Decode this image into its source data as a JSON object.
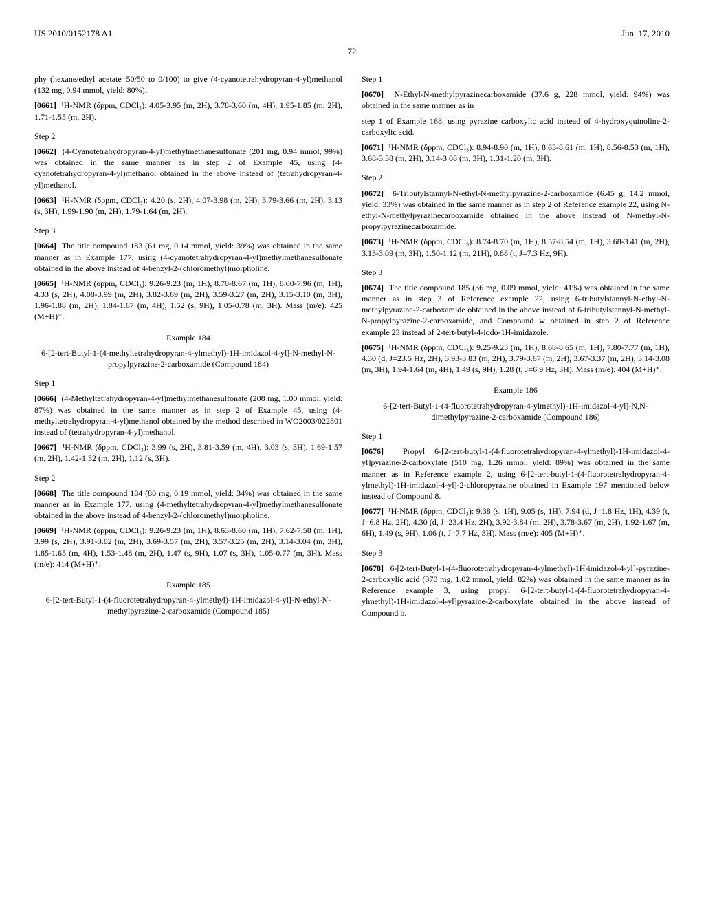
{
  "header": {
    "pub_number": "US 2010/0152178 A1",
    "pub_date": "Jun. 17, 2010",
    "page_number": "72"
  },
  "col1": {
    "intro": "phy (hexane/ethyl acetate=50/50 to 0/100) to give (4-cyanotetrahydropyran-4-yl)methanol (132 mg, 0.94 mmol, yield: 80%).",
    "p0661_label": "[0661]",
    "p0661": "¹H-NMR (δppm, CDCl₃): 4.05-3.95 (m, 2H), 3.78-3.60 (m, 4H), 1.95-1.85 (m, 2H), 1.71-1.55 (m, 2H).",
    "step2_h": "Step 2",
    "p0662_label": "[0662]",
    "p0662": "(4-Cyanotetrahydropyran-4-yl)methylmethanesulfonate (201 mg, 0.94 mmol, 99%) was obtained in the same manner as in step 2 of Example 45, using (4-cyanotetrahydropyran-4-yl)methanol obtained in the above instead of (tetrahydropyran-4-yl)methanol.",
    "p0663_label": "[0663]",
    "p0663": "¹H-NMR (δppm, CDCl₃): 4.20 (s, 2H), 4.07-3.98 (m, 2H), 3.79-3.66 (m, 2H), 3.13 (s, 3H), 1.99-1.90 (m, 2H), 1.79-1.64 (m, 2H).",
    "step3_h": "Step 3",
    "p0664_label": "[0664]",
    "p0664": "The title compound 183 (61 mg, 0.14 mmol, yield: 39%) was obtained in the same manner as in Example 177, using (4-cyanotetrahydropyran-4-yl)methylmethanesulfonate obtained in the above instead of 4-benzyl-2-(chloromethyl)morpholine.",
    "p0665_label": "[0665]",
    "p0665": "¹H-NMR (δppm, CDCl₃): 9.26-9.23 (m, 1H), 8.70-8.67 (m, 1H), 8.00-7.96 (m, 1H), 4.33 (s, 2H), 4.08-3.99 (m, 2H), 3.82-3.69 (m, 2H), 3.59-3.27 (m, 2H), 3.15-3.10 (m, 3H), 1.96-1.88 (m, 2H), 1.84-1.67 (m, 4H), 1.52 (s, 9H), 1.05-0.78 (m, 3H). Mass (m/e): 425 (M+H)⁺.",
    "ex184_h": "Example 184",
    "ex184_title": "6-[2-tert-Butyl-1-(4-methyltetrahydropyran-4-ylmethyl)-1H-imidazol-4-yl]-N-methyl-N-propylpyrazine-2-carboxamide (Compound 184)",
    "ex184_step1_h": "Step 1",
    "p0666_label": "[0666]",
    "p0666": "(4-Methyltetrahydropyran-4-yl)methylmethanesulfonate (208 mg, 1.00 mmol, yield: 87%) was obtained in the same manner as in step 2 of Example 45, using (4-methyltetrahydropyran-4-yl)methanol obtained by the method described in WO2003/022801 instead of (tetrahydropyran-4-yl)methanol.",
    "p0667_label": "[0667]",
    "p0667": "¹H-NMR (δppm, CDCl₃): 3.99 (s, 2H), 3.81-3.59 (m, 4H), 3.03 (s, 3H), 1.69-1.57 (m, 2H), 1.42-1.32 (m, 2H), 1.12 (s, 3H).",
    "ex184_step2_h": "Step 2",
    "p0668_label": "[0668]",
    "p0668": "The title compound 184 (80 mg, 0.19 mmol, yield: 34%) was obtained in the same manner as in Example 177, using (4-methyltetrahydropyran-4-yl)methylmethanesulfonate obtained in the above instead of 4-benzyl-2-(chloromethyl)morpholine.",
    "p0669_label": "[0669]",
    "p0669": "¹H-NMR (δppm, CDCl₃): 9.26-9.23 (m, 1H), 8.63-8.60 (m, 1H), 7.62-7.58 (m, 1H), 3.99 (s, 2H), 3.91-3.82 (m, 2H), 3.69-3.57 (m, 2H), 3.57-3.25 (m, 2H), 3.14-3.04 (m, 3H), 1.85-1.65 (m, 4H), 1.53-1.48 (m, 2H), 1.47 (s, 9H), 1.07 (s, 3H), 1.05-0.77 (m, 3H). Mass (m/e): 414 (M+H)⁺.",
    "ex185_h": "Example 185",
    "ex185_title": "6-[2-tert-Butyl-1-(4-fluorotetrahydropyran-4-ylmethyl)-1H-imidazol-4-yl]-N-ethyl-N-methylpyrazine-2-carboxamide (Compound 185)",
    "ex185_step1_h": "Step 1",
    "p0670_label": "[0670]",
    "p0670": "N-Ethyl-N-methylpyrazinecarboxamide (37.6 g, 228 mmol, yield: 94%) was obtained in the same manner as in"
  },
  "col2": {
    "intro2": "step 1 of Example 168, using pyrazine carboxylic acid instead of 4-hydroxyquinoline-2-carboxylic acid.",
    "p0671_label": "[0671]",
    "p0671": "¹H-NMR (δppm, CDCl₃): 8.94-8.90 (m, 1H), 8.63-8.61 (m, 1H), 8.56-8.53 (m, 1H), 3.68-3.38 (m, 2H), 3.14-3.08 (m, 3H), 1.31-1.20 (m, 3H).",
    "step2_h": "Step 2",
    "p0672_label": "[0672]",
    "p0672": "6-Tributylstannyl-N-ethyl-N-methylpyrazine-2-carboxamide (6.45 g, 14.2 mmol, yield: 33%) was obtained in the same manner as in step 2 of Reference example 22, using N-ethyl-N-methylpyrazinecarboxamide obtained in the above instead of N-methyl-N-propylpyrazinecarboxamide.",
    "p0673_label": "[0673]",
    "p0673": "¹H-NMR (δppm, CDCl₃): 8.74-8.70 (m, 1H), 8.57-8.54 (m, 1H), 3.68-3.41 (m, 2H), 3.13-3.09 (m, 3H), 1.50-1.12 (m, 21H), 0.88 (t, J=7.3 Hz, 9H).",
    "step3_h": "Step 3",
    "p0674_label": "[0674]",
    "p0674": "The title compound 185 (36 mg, 0.09 mmol, yield: 41%) was obtained in the same manner as in step 3 of Reference example 22, using 6-tributylstannyl-N-ethyl-N-methylpyrazine-2-carboxamide obtained in the above instead of 6-tributylstannyl-N-methyl-N-propylpyrazine-2-carboxamide, and Compound w obtained in step 2 of Reference example 23 instead of 2-tert-butyl-4-iodo-1H-imidazole.",
    "p0675_label": "[0675]",
    "p0675": "¹H-NMR (δppm, CDCl₃): 9.25-9.23 (m, 1H), 8.68-8.65 (m, 1H), 7.80-7.77 (m, 1H), 4.30 (d, J=23.5 Hz, 2H), 3.93-3.83 (m, 2H), 3.79-3.67 (m, 2H), 3.67-3.37 (m, 2H), 3.14-3.08 (m, 3H), 1.94-1.64 (m, 4H), 1.49 (s, 9H), 1.28 (t, J=6.9 Hz, 3H). Mass (m/e): 404 (M+H)⁺.",
    "ex186_h": "Example 186",
    "ex186_title": "6-[2-tert-Butyl-1-(4-fluorotetrahydropyran-4-ylmethyl)-1H-imidazol-4-yl]-N,N-dimethylpyrazine-2-carboxamide (Compound 186)",
    "ex186_step1_h": "Step 1",
    "p0676_label": "[0676]",
    "p0676": "Propyl 6-[2-tert-butyl-1-(4-fluorotetrahydropyran-4-ylmethyl)-1H-imidazol-4-yl]pyrazine-2-carboxylate (510 mg, 1.26 mmol, yield: 89%) was obtained in the same manner as in Reference example 2, using 6-[2-tert-butyl-1-(4-fluorotetrahydropyran-4-ylmethyl)-1H-imidazol-4-yl]-2-chloropyrazine obtained in Example 197 mentioned below instead of Compound 8.",
    "p0677_label": "[0677]",
    "p0677": "¹H-NMR (δppm, CDCl₃): 9.38 (s, 1H), 9.05 (s, 1H), 7.94 (d, J=1.8 Hz, 1H), 4.39 (t, J=6.8 Hz, 2H), 4.30 (d, J=23.4 Hz, 2H), 3.92-3.84 (m, 2H), 3.78-3.67 (m, 2H), 1.92-1.67 (m, 6H), 1.49 (s, 9H), 1.06 (t, J=7.7 Hz, 3H). Mass (m/e): 405 (M+H)⁺.",
    "ex186_step3_h": "Step 3",
    "p0678_label": "[0678]",
    "p0678": "6-[2-tert-Butyl-1-(4-fluorotetrahydropyran-4-ylmethyl)-1H-imidazol-4-yl]-pyrazine-2-carboxylic acid (370 mg, 1.02 mmol, yield: 82%) was obtained in the same manner as in Reference example 3, using propyl 6-[2-tert-butyl-1-(4-fluorotetrahydropyran-4-ylmethyl)-1H-imidazol-4-yl]pyrazine-2-carboxylate obtained in the above instead of Compound b."
  }
}
